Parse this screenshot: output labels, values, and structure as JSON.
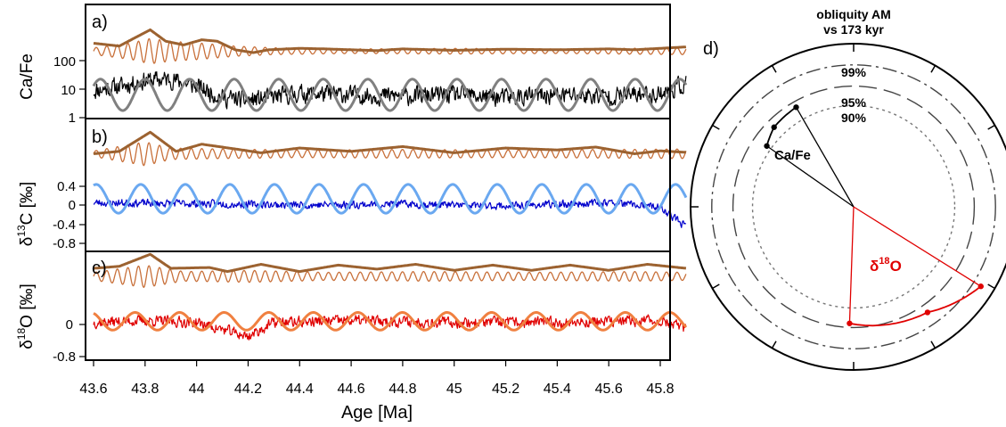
{
  "chart_data": [
    {
      "type": "line",
      "panel": "a)",
      "x_label": "Age [Ma]",
      "y_label": "Ca/Fe",
      "y_scale": "log",
      "y_ticks": [
        "1",
        "10",
        "100"
      ],
      "y_tick_values": [
        1,
        10,
        100
      ],
      "x_ticks": [
        "43.6",
        "43.8",
        "44",
        "44.2",
        "44.4",
        "44.6",
        "44.8",
        "45",
        "45.2",
        "45.4",
        "45.6",
        "45.8"
      ],
      "x_tick_values": [
        43.6,
        43.8,
        44.0,
        44.2,
        44.4,
        44.6,
        44.8,
        45.0,
        45.2,
        45.4,
        45.6,
        45.8
      ],
      "xlim": [
        43.6,
        45.9
      ],
      "series": [
        {
          "role": "raw data",
          "color": "#000000",
          "seed": 11,
          "base": [
            [
              43.6,
              0.95
            ],
            [
              43.7,
              1.1
            ],
            [
              43.8,
              1.3
            ],
            [
              43.9,
              1.35
            ],
            [
              44.0,
              1.1
            ],
            [
              44.1,
              0.7
            ],
            [
              44.2,
              0.6
            ],
            [
              44.4,
              0.85
            ],
            [
              44.6,
              0.8
            ],
            [
              44.8,
              0.75
            ],
            [
              45.0,
              0.8
            ],
            [
              45.2,
              0.7
            ],
            [
              45.4,
              0.8
            ],
            [
              45.6,
              0.75
            ],
            [
              45.8,
              0.85
            ],
            [
              45.9,
              1.2
            ]
          ],
          "noise": 0.28
        },
        {
          "role": "obliquity AM fit",
          "color": "#808080",
          "center": 0.8,
          "amp": 0.55,
          "period": 0.173,
          "phase": 0.6
        },
        {
          "role": "obliquity filter",
          "color": "#c8703a",
          "offset": 2.33,
          "period": 0.041,
          "envelope": [
            [
              43.6,
              0.12
            ],
            [
              43.75,
              0.3
            ],
            [
              43.82,
              0.45
            ],
            [
              43.9,
              0.35
            ],
            [
              44.0,
              0.3
            ],
            [
              44.15,
              0.18
            ],
            [
              44.3,
              0.12
            ],
            [
              44.6,
              0.08
            ],
            [
              45.0,
              0.1
            ],
            [
              45.4,
              0.08
            ],
            [
              45.9,
              0.12
            ]
          ]
        },
        {
          "role": "obliquity AM envelope",
          "color": "#9c6230",
          "offset": 2.33,
          "envelope": [
            [
              43.6,
              0.28
            ],
            [
              43.7,
              0.18
            ],
            [
              43.75,
              0.42
            ],
            [
              43.82,
              0.75
            ],
            [
              43.88,
              0.35
            ],
            [
              43.95,
              0.22
            ],
            [
              44.02,
              0.4
            ],
            [
              44.08,
              0.35
            ],
            [
              44.15,
              0.05
            ],
            [
              44.22,
              -0.05
            ],
            [
              44.28,
              0.05
            ],
            [
              44.4,
              0.1
            ],
            [
              44.5,
              0.08
            ],
            [
              44.7,
              0.02
            ],
            [
              44.8,
              0.08
            ],
            [
              45.0,
              0.03
            ],
            [
              45.2,
              0.07
            ],
            [
              45.4,
              0.05
            ],
            [
              45.6,
              0.08
            ],
            [
              45.7,
              0.05
            ],
            [
              45.8,
              0.1
            ],
            [
              45.9,
              0.15
            ]
          ]
        }
      ]
    },
    {
      "type": "line",
      "panel": "b)",
      "x_label": "Age [Ma]",
      "y_label": "δ13C [‰]",
      "y_ticks": [
        "0.4",
        "0",
        "-0.4",
        "-0.8"
      ],
      "y_tick_values": [
        0.4,
        0,
        -0.4,
        -0.8
      ],
      "xlim": [
        43.6,
        45.9
      ],
      "series": [
        {
          "role": "raw data",
          "color": "#0000cc",
          "seed": 23,
          "base": [
            [
              43.6,
              0.05
            ],
            [
              44.0,
              0.03
            ],
            [
              44.4,
              0.0
            ],
            [
              44.8,
              0.02
            ],
            [
              45.2,
              -0.02
            ],
            [
              45.6,
              0.05
            ],
            [
              45.8,
              -0.05
            ],
            [
              45.9,
              -0.45
            ]
          ],
          "noise": 0.07
        },
        {
          "role": "obliquity AM fit",
          "color": "#6aa8f0",
          "center": 0.13,
          "amp": 0.3,
          "period": 0.173,
          "phase": 1.2
        },
        {
          "role": "obliquity filter",
          "color": "#c8703a",
          "offset": 1.07,
          "period": 0.041,
          "envelope": [
            [
              43.6,
              0.06
            ],
            [
              43.8,
              0.25
            ],
            [
              43.9,
              0.12
            ],
            [
              44.1,
              0.1
            ],
            [
              44.4,
              0.08
            ],
            [
              44.8,
              0.09
            ],
            [
              45.2,
              0.08
            ],
            [
              45.6,
              0.09
            ],
            [
              45.9,
              0.1
            ]
          ]
        },
        {
          "role": "obliquity AM envelope",
          "color": "#9c6230",
          "offset": 1.07,
          "envelope": [
            [
              43.6,
              0.0
            ],
            [
              43.7,
              0.05
            ],
            [
              43.82,
              0.45
            ],
            [
              43.92,
              0.05
            ],
            [
              44.02,
              0.2
            ],
            [
              44.15,
              0.1
            ],
            [
              44.25,
              0.02
            ],
            [
              44.4,
              0.12
            ],
            [
              44.6,
              0.05
            ],
            [
              44.8,
              0.15
            ],
            [
              45.0,
              0.02
            ],
            [
              45.2,
              0.12
            ],
            [
              45.4,
              0.08
            ],
            [
              45.55,
              0.14
            ],
            [
              45.7,
              0.0
            ],
            [
              45.8,
              0.06
            ],
            [
              45.9,
              0.03
            ]
          ]
        }
      ]
    },
    {
      "type": "line",
      "panel": "c)",
      "x_label": "Age [Ma]",
      "y_label": "δ18O [‰]",
      "y_ticks": [
        "0",
        "-0.8"
      ],
      "y_tick_values": [
        0,
        -0.8
      ],
      "xlim": [
        43.6,
        45.9
      ],
      "series": [
        {
          "role": "raw data",
          "color": "#e00000",
          "seed": 37,
          "base": [
            [
              43.6,
              0.05
            ],
            [
              43.8,
              0.1
            ],
            [
              44.0,
              0.05
            ],
            [
              44.2,
              -0.3
            ],
            [
              44.3,
              0.05
            ],
            [
              44.6,
              0.1
            ],
            [
              45.0,
              0.05
            ],
            [
              45.4,
              0.05
            ],
            [
              45.8,
              0.1
            ],
            [
              45.9,
              -0.1
            ]
          ],
          "noise": 0.12
        },
        {
          "role": "obliquity AM fit",
          "color": "#f08040",
          "center": 0.08,
          "amp": 0.22,
          "period": 0.173,
          "phase": 2.0
        },
        {
          "role": "obliquity filter",
          "color": "#c8703a",
          "offset": 1.2,
          "period": 0.041,
          "envelope": [
            [
              43.6,
              0.1
            ],
            [
              43.8,
              0.28
            ],
            [
              43.95,
              0.12
            ],
            [
              44.2,
              0.15
            ],
            [
              44.5,
              0.1
            ],
            [
              44.9,
              0.12
            ],
            [
              45.3,
              0.1
            ],
            [
              45.7,
              0.12
            ],
            [
              45.9,
              0.1
            ]
          ]
        },
        {
          "role": "obliquity AM envelope",
          "color": "#9c6230",
          "offset": 1.2,
          "envelope": [
            [
              43.6,
              0.2
            ],
            [
              43.7,
              0.25
            ],
            [
              43.82,
              0.55
            ],
            [
              43.9,
              0.2
            ],
            [
              44.05,
              0.22
            ],
            [
              44.12,
              0.12
            ],
            [
              44.25,
              0.3
            ],
            [
              44.4,
              0.12
            ],
            [
              44.55,
              0.28
            ],
            [
              44.7,
              0.18
            ],
            [
              44.85,
              0.3
            ],
            [
              45.0,
              0.15
            ],
            [
              45.15,
              0.28
            ],
            [
              45.3,
              0.15
            ],
            [
              45.45,
              0.28
            ],
            [
              45.6,
              0.15
            ],
            [
              45.75,
              0.3
            ],
            [
              45.9,
              0.2
            ]
          ]
        }
      ]
    },
    {
      "type": "polar",
      "panel": "d)",
      "title": "obliquity AM vs 173 kyr",
      "circle_labels": [
        "99%",
        "95%",
        "90%"
      ],
      "circle_radius_fractions": [
        0.87,
        0.74,
        0.62
      ],
      "tick_count": 12,
      "vectors": [
        {
          "label": "Ca/Fe",
          "color": "#000000",
          "angle_deg": 330,
          "radius": 0.705,
          "arc_points": [
            [
              305,
              0.65
            ],
            [
              315,
              0.69
            ],
            [
              330,
              0.705
            ]
          ]
        },
        {
          "label": "δ18O",
          "color": "#e00000",
          "angle_deg": 122,
          "radius": 0.92,
          "arc_points": [
            [
              182,
              0.715
            ],
            [
              145,
              0.79
            ],
            [
              122,
              0.92
            ]
          ]
        }
      ]
    }
  ],
  "panels": {
    "a": {
      "letter": "a)",
      "y_label": "Ca/Fe",
      "ticks": [
        "100",
        "10",
        "1"
      ]
    },
    "b": {
      "letter": "b)",
      "y_label_main": "δ",
      "y_label_sup": "13",
      "y_label_rest": "C [‰]",
      "ticks": [
        "0.4",
        "0",
        "-0.4",
        "-0.8"
      ]
    },
    "c": {
      "letter": "c)",
      "y_label_main": "δ",
      "y_label_sup": "18",
      "y_label_rest": "O [‰]",
      "ticks": [
        "0",
        "-0.8"
      ]
    },
    "x_axis": {
      "label": "Age [Ma]",
      "ticks": [
        "43.6",
        "43.8",
        "44",
        "44.2",
        "44.4",
        "44.6",
        "44.8",
        "45",
        "45.2",
        "45.4",
        "45.6",
        "45.8"
      ]
    },
    "d": {
      "letter": "d)",
      "title_line1": "obliquity AM",
      "title_line2": "vs 173 kyr",
      "pct99": "99%",
      "pct95": "95%",
      "pct90": "90%",
      "label_cafe": "Ca/Fe",
      "label_d18o_main": "δ",
      "label_d18o_sup": "18",
      "label_d18o_rest": "O"
    }
  }
}
